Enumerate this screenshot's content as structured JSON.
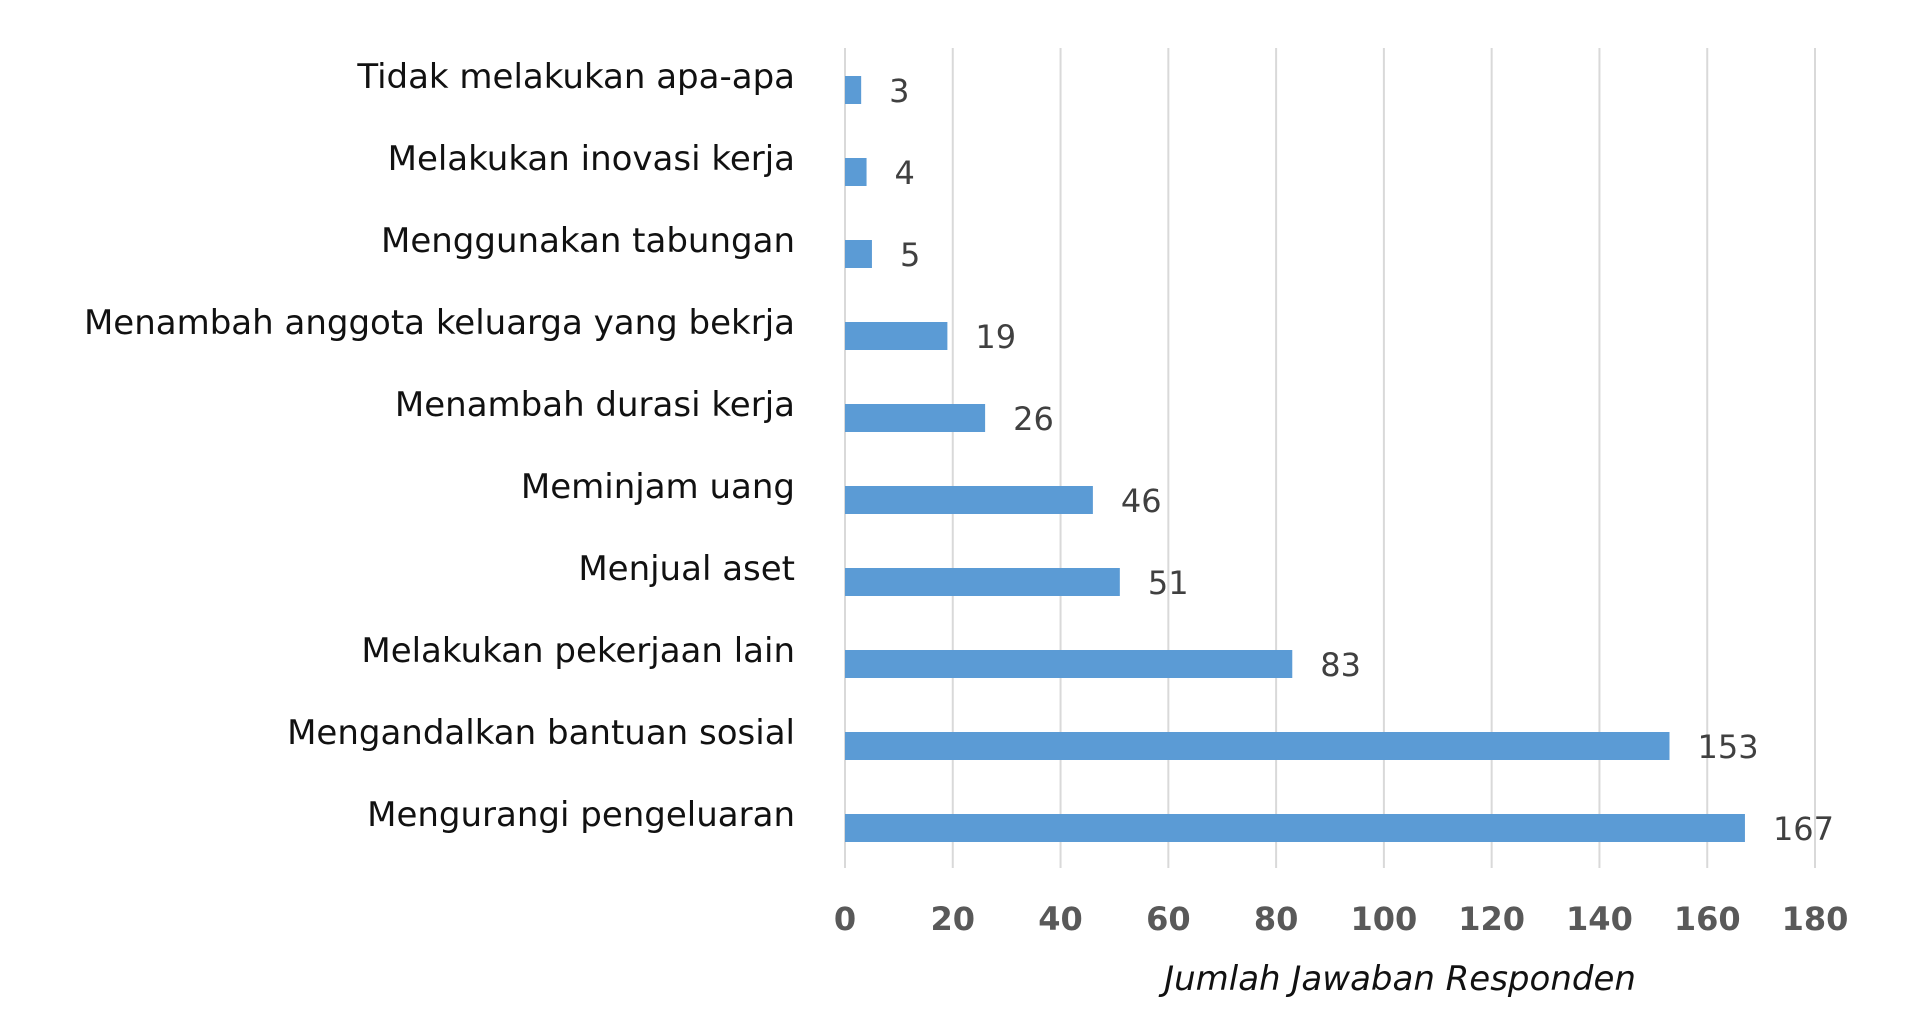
{
  "chart_data": {
    "type": "bar",
    "orientation": "horizontal",
    "categories": [
      "Tidak melakukan apa-apa",
      "Melakukan inovasi kerja",
      "Menggunakan tabungan",
      "Menambah anggota keluarga yang bekrja",
      "Menambah durasi kerja",
      "Meminjam uang",
      "Menjual aset",
      "Melakukan pekerjaan lain",
      "Mengandalkan bantuan sosial",
      "Mengurangi pengeluaran"
    ],
    "values": [
      3,
      4,
      5,
      19,
      26,
      46,
      51,
      83,
      153,
      167
    ],
    "xlabel": "Jumlah Jawaban Responden",
    "ylabel": "",
    "xlim": [
      0,
      180
    ],
    "xticks": [
      0,
      20,
      40,
      60,
      80,
      100,
      120,
      140,
      160,
      180
    ],
    "grid": "vertical",
    "data_labels": true,
    "bar_color": "#5b9bd5"
  }
}
